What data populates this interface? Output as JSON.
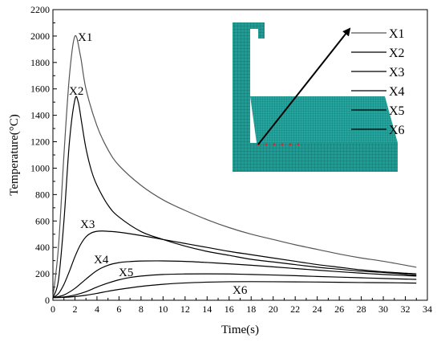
{
  "chart_data": {
    "type": "line",
    "xlabel": "Time(s)",
    "ylabel": "Temperature(°C)",
    "xlim": [
      0,
      34
    ],
    "ylim": [
      0,
      2200
    ],
    "xticks": [
      0,
      2,
      4,
      6,
      8,
      10,
      12,
      14,
      16,
      18,
      20,
      22,
      24,
      26,
      28,
      30,
      32,
      34
    ],
    "yticks": [
      0,
      200,
      400,
      600,
      800,
      1000,
      1200,
      1400,
      1600,
      1800,
      2000,
      2200
    ],
    "grid": false,
    "legend_position": "top-right",
    "legend_entries": [
      "X1",
      "X2",
      "X3",
      "X4",
      "X5",
      "X6"
    ],
    "series": [
      {
        "name": "X1",
        "color": "#555555",
        "x": [
          0,
          0.5,
          1.0,
          1.5,
          2.0,
          2.5,
          3.0,
          4.0,
          5.0,
          6.0,
          8.0,
          10.0,
          12.0,
          14.0,
          16.0,
          18.0,
          20.0,
          22.0,
          24.0,
          26.0,
          28.0,
          30.0,
          33.0
        ],
        "y": [
          20,
          400,
          1100,
          1700,
          2000,
          1850,
          1600,
          1320,
          1140,
          1020,
          870,
          760,
          680,
          610,
          550,
          500,
          460,
          420,
          385,
          350,
          320,
          295,
          250
        ]
      },
      {
        "name": "X2",
        "color": "#000000",
        "x": [
          0,
          0.5,
          1.0,
          1.5,
          2.0,
          2.3,
          2.6,
          3.0,
          3.5,
          4.0,
          5.0,
          6.0,
          8.0,
          10.0,
          12.0,
          14.0,
          16.0,
          18.0,
          20.0,
          22.0,
          24.0,
          26.0,
          28.0,
          30.0,
          33.0
        ],
        "y": [
          20,
          150,
          600,
          1200,
          1520,
          1500,
          1350,
          1150,
          980,
          870,
          720,
          630,
          520,
          460,
          410,
          370,
          340,
          310,
          290,
          270,
          250,
          235,
          220,
          210,
          190
        ]
      },
      {
        "name": "X3",
        "color": "#000000",
        "x": [
          0,
          0.5,
          1.0,
          1.5,
          2.0,
          2.5,
          3.0,
          3.5,
          4.0,
          4.5,
          5.0,
          6.0,
          8.0,
          10.0,
          12.0,
          14.0,
          16.0,
          18.0,
          20.0,
          22.0,
          24.0,
          26.0,
          28.0,
          30.0,
          33.0
        ],
        "y": [
          20,
          50,
          120,
          220,
          330,
          420,
          480,
          510,
          522,
          524,
          522,
          515,
          490,
          460,
          430,
          400,
          370,
          345,
          320,
          295,
          270,
          250,
          230,
          215,
          200
        ]
      },
      {
        "name": "X4",
        "color": "#000000",
        "x": [
          0,
          1.0,
          2.0,
          3.0,
          4.0,
          5.0,
          6.0,
          7.0,
          8.0,
          10.0,
          12.0,
          14.0,
          16.0,
          18.0,
          20.0,
          22.0,
          24.0,
          26.0,
          28.0,
          30.0,
          33.0
        ],
        "y": [
          20,
          40,
          90,
          160,
          225,
          265,
          285,
          293,
          297,
          298,
          294,
          286,
          276,
          265,
          253,
          240,
          228,
          216,
          205,
          195,
          183
        ]
      },
      {
        "name": "X5",
        "color": "#000000",
        "x": [
          0,
          1.0,
          2.0,
          3.0,
          4.0,
          5.0,
          6.0,
          7.0,
          8.0,
          10.0,
          12.0,
          14.0,
          16.0,
          18.0,
          20.0,
          22.0,
          24.0,
          26.0,
          28.0,
          30.0,
          33.0
        ],
        "y": [
          20,
          25,
          40,
          65,
          100,
          130,
          155,
          172,
          183,
          195,
          199,
          200,
          199,
          195,
          191,
          186,
          180,
          175,
          170,
          165,
          158
        ]
      },
      {
        "name": "X6",
        "color": "#000000",
        "x": [
          0,
          1.0,
          2.0,
          3.0,
          4.0,
          5.0,
          6.0,
          8.0,
          10.0,
          12.0,
          14.0,
          16.0,
          18.0,
          20.0,
          22.0,
          24.0,
          26.0,
          28.0,
          30.0,
          33.0
        ],
        "y": [
          20,
          22,
          28,
          38,
          52,
          68,
          82,
          105,
          121,
          131,
          137,
          140,
          141,
          140,
          139,
          138,
          136,
          134,
          133,
          130
        ]
      }
    ]
  },
  "inset": {
    "mesh_color": "#1f9c95",
    "mesh_line_color": "#0b5f59",
    "arrow_color": "#000000",
    "marker_color": "#e0282b"
  }
}
